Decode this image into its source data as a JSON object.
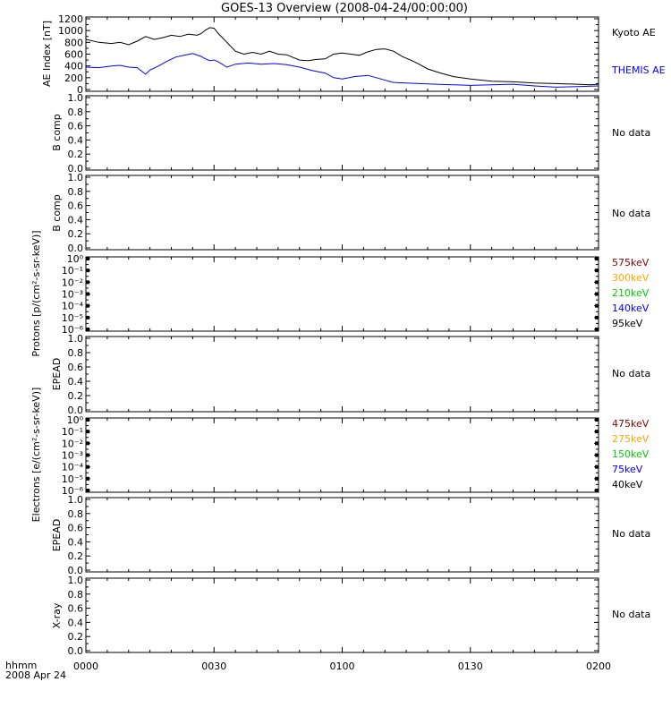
{
  "title": "GOES-13 Overview (2008-04-24/00:00:00)",
  "x_axis": {
    "row_label": "hhmm",
    "date_label": "2008 Apr 24",
    "ticks": [
      "0000",
      "0030",
      "0100",
      "0130",
      "0200"
    ]
  },
  "colors": {
    "kyoto": "#000000",
    "themis": "#0000ff",
    "ch_575": "#8b0000",
    "ch_300": "#ffa500",
    "ch_210": "#00cc00",
    "ch_140": "#0000ff",
    "ch_95": "#000000"
  },
  "chart_data": [
    {
      "type": "line",
      "ylabel": "AE Index [nT]",
      "ylim": [
        0,
        1200
      ],
      "yticks": [
        "1200",
        "1000",
        "800",
        "600",
        "400",
        "200",
        "0"
      ],
      "xlim_minutes": [
        0,
        120
      ],
      "series": [
        {
          "name": "Kyoto AE",
          "color": "#000000",
          "x": [
            0,
            3,
            6,
            8,
            10,
            12,
            14,
            16,
            18,
            20,
            22,
            24,
            26,
            27,
            28,
            29,
            30,
            31,
            33,
            35,
            37,
            39,
            41,
            43,
            45,
            47,
            50,
            52,
            54,
            56,
            58,
            60,
            62,
            64,
            66,
            68,
            70,
            72,
            74,
            76,
            78,
            80,
            83,
            86,
            90,
            95,
            100,
            105,
            110,
            115,
            118,
            120
          ],
          "values": [
            850,
            800,
            780,
            800,
            760,
            820,
            900,
            850,
            880,
            920,
            900,
            940,
            920,
            950,
            1010,
            1050,
            1040,
            950,
            800,
            650,
            600,
            630,
            600,
            650,
            600,
            590,
            500,
            490,
            510,
            520,
            600,
            620,
            600,
            580,
            640,
            680,
            690,
            650,
            560,
            500,
            430,
            350,
            280,
            220,
            180,
            140,
            130,
            110,
            100,
            90,
            80,
            90
          ]
        },
        {
          "name": "THEMIS AE",
          "color": "#0000ff",
          "x": [
            0,
            3,
            6,
            8,
            10,
            12,
            14,
            15,
            17,
            19,
            21,
            23,
            25,
            27,
            28,
            29,
            30,
            31,
            33,
            35,
            38,
            41,
            44,
            47,
            50,
            53,
            56,
            58,
            60,
            63,
            66,
            69,
            72,
            75,
            78,
            82,
            86,
            90,
            95,
            100,
            105,
            110,
            115,
            120
          ],
          "values": [
            380,
            370,
            400,
            410,
            380,
            370,
            260,
            330,
            400,
            480,
            550,
            580,
            610,
            560,
            520,
            490,
            500,
            470,
            380,
            430,
            450,
            430,
            440,
            420,
            380,
            320,
            280,
            200,
            180,
            220,
            240,
            180,
            120,
            110,
            100,
            90,
            80,
            70,
            80,
            90,
            60,
            40,
            50,
            60
          ]
        }
      ]
    },
    {
      "type": "line",
      "ylabel": "B comp",
      "ylim": [
        0,
        1
      ],
      "yticks": [
        "1.0",
        "0.8",
        "0.6",
        "0.4",
        "0.2",
        "0.0"
      ],
      "note": "No data"
    },
    {
      "type": "line",
      "ylabel": "B comp",
      "ylim": [
        0,
        1
      ],
      "yticks": [
        "1.0",
        "0.8",
        "0.6",
        "0.4",
        "0.2",
        "0.0"
      ],
      "note": "No data"
    },
    {
      "type": "line",
      "ylabel": "Protons [p/(cm²-s-sr-keV)]",
      "yscale": "log",
      "ylim": [
        1e-06,
        1
      ],
      "yticks": [
        "10⁰",
        "10⁻¹",
        "10⁻²",
        "10⁻³",
        "10⁻⁴",
        "10⁻⁵",
        "10⁻⁶"
      ],
      "channels": [
        "575keV",
        "300keV",
        "210keV",
        "140keV",
        "95keV"
      ]
    },
    {
      "type": "line",
      "ylabel": "EPEAD",
      "ylim": [
        0,
        1
      ],
      "yticks": [
        "1.0",
        "0.8",
        "0.6",
        "0.4",
        "0.2",
        "0.0"
      ],
      "note": "No data"
    },
    {
      "type": "line",
      "ylabel": "Electrons [e/(cm²-s-sr-keV)]",
      "yscale": "log",
      "ylim": [
        1e-06,
        1
      ],
      "yticks": [
        "10⁰",
        "10⁻¹",
        "10⁻²",
        "10⁻³",
        "10⁻⁴",
        "10⁻⁵",
        "10⁻⁶"
      ],
      "channels": [
        "475keV",
        "275keV",
        "150keV",
        "75keV",
        "40keV"
      ]
    },
    {
      "type": "line",
      "ylabel": "EPEAD",
      "ylim": [
        0,
        1
      ],
      "yticks": [
        "1.0",
        "0.8",
        "0.6",
        "0.4",
        "0.2",
        "0.0"
      ],
      "note": "No data"
    },
    {
      "type": "line",
      "ylabel": "X-ray",
      "ylim": [
        0,
        1
      ],
      "yticks": [
        "1.0",
        "0.8",
        "0.6",
        "0.4",
        "0.2",
        "0.0"
      ],
      "note": "No data"
    }
  ]
}
